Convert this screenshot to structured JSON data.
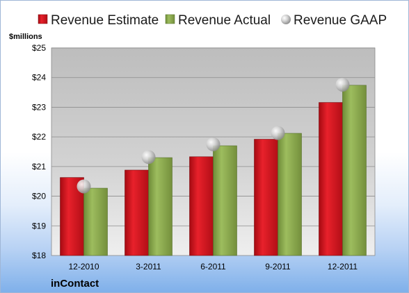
{
  "chart_data": {
    "type": "bar",
    "title": "",
    "unit_label": "$millions",
    "categories": [
      "12-2010",
      "3-2011",
      "6-2011",
      "9-2011",
      "12-2011"
    ],
    "series": [
      {
        "name": "Revenue Estimate",
        "kind": "bar",
        "color": "#d9141e",
        "values": [
          20.63,
          20.88,
          21.33,
          21.92,
          23.16
        ]
      },
      {
        "name": "Revenue Actual",
        "kind": "bar",
        "color": "#8bab4f",
        "values": [
          20.27,
          21.3,
          21.7,
          22.12,
          23.74
        ]
      },
      {
        "name": "Revenue GAAP",
        "kind": "marker",
        "color": "#c8c8c8",
        "values": [
          20.33,
          21.32,
          21.75,
          22.13,
          23.76
        ]
      }
    ],
    "y_ticks": [
      "$18",
      "$19",
      "$20",
      "$21",
      "$22",
      "$23",
      "$24",
      "$25"
    ],
    "ylim": [
      18,
      25
    ],
    "grid": true,
    "legend_position": "top"
  },
  "brand": "inContact"
}
